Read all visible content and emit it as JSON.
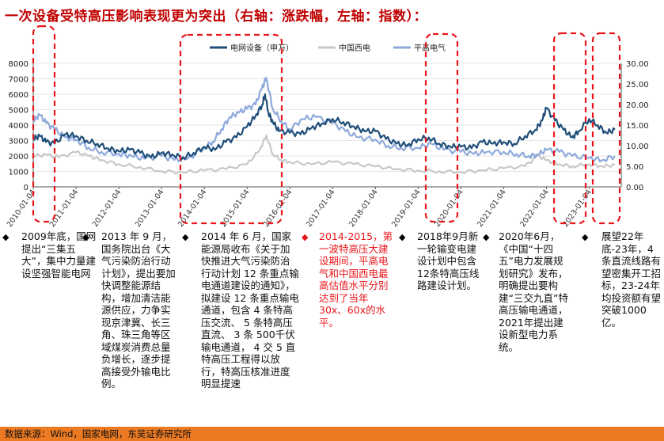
{
  "title": "一次设备受特高压影响表现更为突出（右轴：涨跌幅，左轴：指数）：",
  "footer": "数据来源：Wind，国家电网，东吴证券研究所",
  "colors": {
    "series_dianwang": "#1f4e79",
    "series_xidian": "#c8c8c8",
    "series_pinggao": "#8ea9db",
    "highlight": "#e8161b",
    "footer_bg": "#ec7a22"
  },
  "chart_data": {
    "type": "line",
    "left_axis": {
      "min": 0,
      "max": 8000,
      "ticks": [
        0,
        1000,
        2000,
        3000,
        4000,
        5000,
        6000,
        7000,
        8000
      ]
    },
    "right_axis": {
      "min": 0,
      "max": 30,
      "ticks": [
        "0.00",
        "5.00",
        "10.00",
        "15.00",
        "20.00",
        "25.00",
        "30.00"
      ]
    },
    "x_tick_labels": [
      "2010-01-04",
      "2011-01-04",
      "2012-01-04",
      "2013-01-04",
      "2014-01-04",
      "2015-01-04",
      "2016-01-04",
      "2017-01-04",
      "2018-01-04",
      "2019-01-04",
      "2020-01-04",
      "2021-01-04",
      "2022-01-04",
      "2023-01-04"
    ],
    "legend": {
      "placement": "top",
      "entries": [
        "电网设备（申万）",
        "中国西电",
        "平高电气"
      ]
    },
    "series": [
      {
        "name": "电网设备（申万）",
        "axis": "left",
        "x": [
          2010.0,
          2010.15,
          2010.3,
          2010.5,
          2010.75,
          2011.0,
          2011.25,
          2011.5,
          2011.75,
          2012.0,
          2012.25,
          2012.5,
          2012.75,
          2013.0,
          2013.25,
          2013.5,
          2013.75,
          2014.0,
          2014.25,
          2014.5,
          2014.75,
          2015.0,
          2015.2,
          2015.35,
          2015.42,
          2015.5,
          2015.6,
          2015.75,
          2016.0,
          2016.25,
          2016.5,
          2016.75,
          2017.0,
          2017.25,
          2017.5,
          2017.75,
          2018.0,
          2018.25,
          2018.5,
          2018.75,
          2019.0,
          2019.25,
          2019.5,
          2019.75,
          2020.0,
          2020.25,
          2020.5,
          2020.75,
          2021.0,
          2021.25,
          2021.5,
          2021.75,
          2021.9,
          2022.0,
          2022.2,
          2022.4,
          2022.6,
          2022.75,
          2023.0,
          2023.2,
          2023.4,
          2023.6
        ],
        "y": [
          3100,
          3300,
          2900,
          2800,
          3400,
          3300,
          3000,
          2800,
          2500,
          2300,
          2400,
          2200,
          1900,
          2200,
          2100,
          1900,
          2200,
          2600,
          2400,
          2900,
          3200,
          3900,
          4600,
          5300,
          6000,
          4800,
          4200,
          3600,
          3500,
          3400,
          3800,
          4100,
          4400,
          4200,
          3900,
          3600,
          3600,
          3100,
          2800,
          2700,
          3100,
          3200,
          2800,
          2600,
          2600,
          2500,
          2900,
          2800,
          2900,
          2800,
          3300,
          3700,
          4300,
          5100,
          4300,
          3700,
          3200,
          3600,
          4400,
          4000,
          3500,
          3700
        ]
      },
      {
        "name": "中国西电",
        "axis": "right",
        "x": [
          2010.0,
          2010.3,
          2010.6,
          2011.0,
          2011.3,
          2011.6,
          2012.0,
          2012.5,
          2013.0,
          2013.5,
          2014.0,
          2014.5,
          2015.0,
          2015.3,
          2015.45,
          2015.6,
          2015.8,
          2016.0,
          2016.5,
          2017.0,
          2017.5,
          2018.0,
          2018.5,
          2019.0,
          2019.5,
          2020.0,
          2020.5,
          2021.0,
          2021.5,
          2021.8,
          2022.0,
          2022.3,
          2022.6,
          2023.0,
          2023.3,
          2023.6
        ],
        "y": [
          7.5,
          7.8,
          7.2,
          8.4,
          7.5,
          6.5,
          5.5,
          4.8,
          3.8,
          3.5,
          4.0,
          4.3,
          5.5,
          9.0,
          12.5,
          8.0,
          6.5,
          6.0,
          5.5,
          6.0,
          5.5,
          5.0,
          4.3,
          4.0,
          3.8,
          3.6,
          4.0,
          4.5,
          5.0,
          7.5,
          6.5,
          5.5,
          5.0,
          5.5,
          5.0,
          5.3
        ]
      },
      {
        "name": "平高电气",
        "axis": "right",
        "x": [
          2010.0,
          2010.15,
          2010.3,
          2010.5,
          2010.75,
          2011.0,
          2011.3,
          2011.6,
          2012.0,
          2012.3,
          2012.6,
          2013.0,
          2013.3,
          2013.6,
          2014.0,
          2014.2,
          2014.4,
          2014.6,
          2014.8,
          2015.0,
          2015.2,
          2015.35,
          2015.45,
          2015.6,
          2015.8,
          2016.0,
          2016.3,
          2016.6,
          2017.0,
          2017.3,
          2017.6,
          2018.0,
          2018.3,
          2018.6,
          2019.0,
          2019.3,
          2019.6,
          2020.0,
          2020.3,
          2020.6,
          2021.0,
          2021.3,
          2021.6,
          2021.8,
          2022.0,
          2022.3,
          2022.6,
          2023.0,
          2023.3,
          2023.6
        ],
        "y": [
          16.0,
          17.5,
          15.5,
          14.0,
          12.0,
          11.5,
          9.5,
          8.5,
          8.0,
          7.5,
          6.8,
          7.5,
          6.5,
          6.8,
          9.5,
          11.0,
          14.0,
          17.0,
          18.0,
          19.0,
          20.0,
          24.0,
          26.5,
          19.0,
          16.0,
          14.0,
          16.5,
          17.0,
          15.5,
          13.5,
          12.0,
          11.5,
          10.0,
          9.5,
          9.5,
          10.5,
          9.0,
          8.5,
          8.0,
          8.5,
          8.5,
          8.0,
          7.5,
          7.8,
          9.0,
          8.5,
          7.5,
          7.0,
          6.5,
          7.5
        ]
      }
    ]
  },
  "notes": [
    {
      "id": "2009",
      "text": "2009年底，国网提出“三集五大”，集中力量建设坚强智能电网",
      "red": false
    },
    {
      "id": "2013",
      "text": "2013 年 9 月，国务院出台《大气污染防治行动计划》，提出要加快调整能源结构，增加清洁能源供应，力争实现京津冀、长三角、珠三角等区域煤炭消费总量负增长，逐步提高接受外输电比例。",
      "red": false
    },
    {
      "id": "2014",
      "text": "2014 年 6 月，国家能源局收布《关于加快推进大气污染防治行动计划 12 条重点输电通道建设的通知》，拟建设 12 条重点输电通道，包含 4 条特高压交流、 5 条特高压直流、 3 条 500千伏输电通道，  4 交 5 直特高压工程得以放行，特高压核准进度明显提速",
      "red": false
    },
    {
      "id": "2014-2015",
      "text": "2014-2015，第一波特高压大建设期间，平高电气和中国西电最高估值水平分别达到了当年30x、60x的水平。",
      "red": true
    },
    {
      "id": "2018",
      "text": "2018年9月新一轮输变电建设计划中包含12条特高压线路建设计划。",
      "red": false
    },
    {
      "id": "2020",
      "text": "2020年6月，《中国“十四五”电力发展规划研究》发布，明确提出要构建“三交九直”特高压输电通道，2021年提出建设新型电力系统。",
      "red": false
    },
    {
      "id": "2022",
      "text": "展望22年底-23年，4条直流线路有望密集开工招标，23-24年均投资额有望突破1000亿。",
      "red": false
    }
  ],
  "bullet_black": "◆",
  "bullet_red": "◆"
}
